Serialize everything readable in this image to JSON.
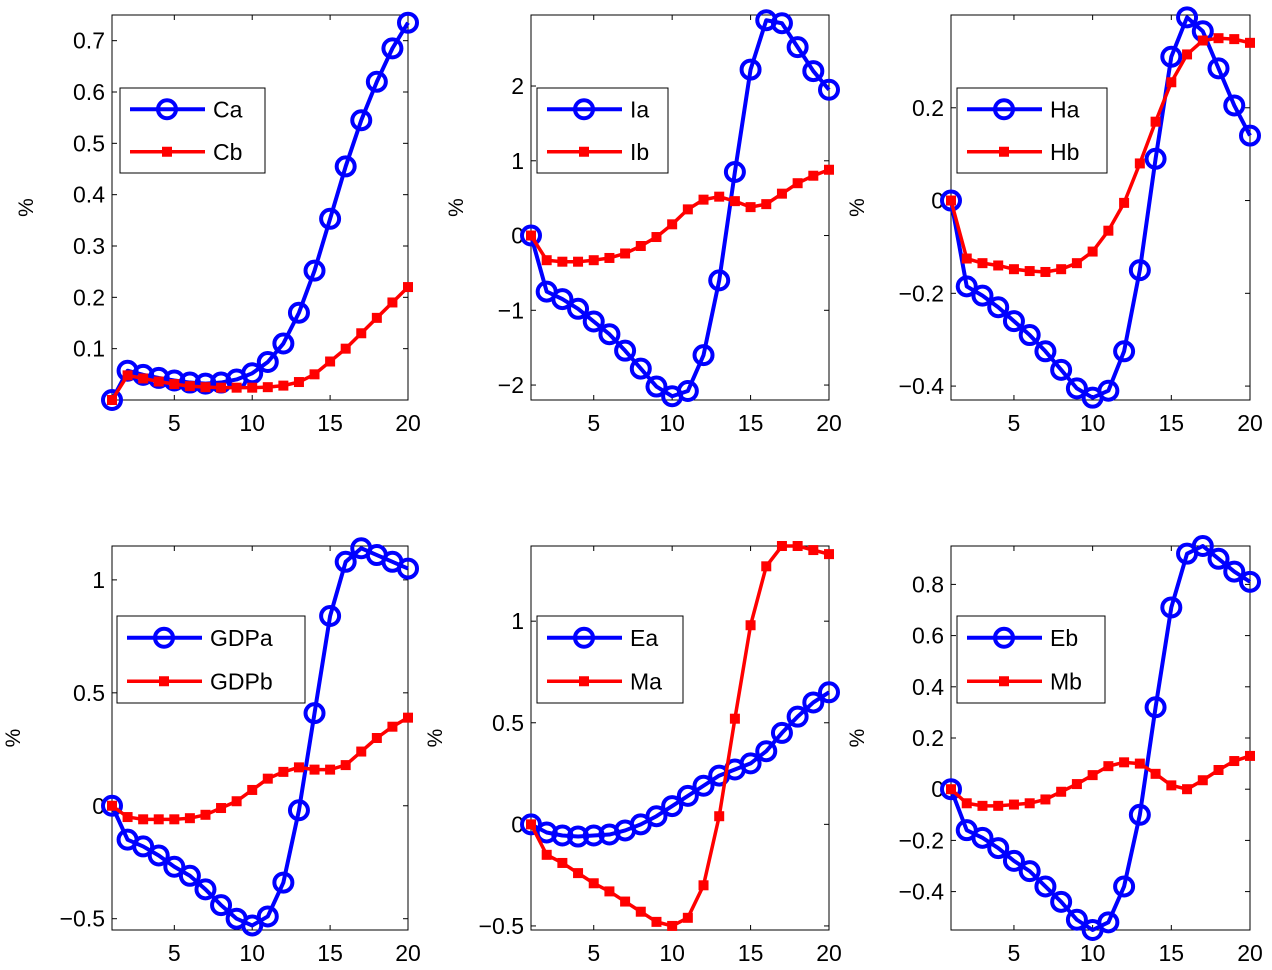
{
  "colors": {
    "a": "#0000ff",
    "b": "#ff0000",
    "axes": "#000000",
    "background": "#ffffff"
  },
  "chart_data": [
    {
      "type": "line",
      "ylabel": "%",
      "xlim": [
        1,
        20
      ],
      "ylim": [
        0.0,
        0.75
      ],
      "xticks": [
        5,
        10,
        15,
        20
      ],
      "xtick_labels": [
        "5",
        "10",
        "15",
        "20"
      ],
      "yticks": [
        0.1,
        0.2,
        0.3,
        0.4,
        0.5,
        0.6,
        0.7
      ],
      "ytick_labels": [
        "0.1",
        "0.2",
        "0.3",
        "0.4",
        "0.5",
        "0.6",
        "0.7"
      ],
      "legend": "top-left",
      "grid": false,
      "x": [
        1,
        2,
        3,
        4,
        5,
        6,
        7,
        8,
        9,
        10,
        11,
        12,
        13,
        14,
        15,
        16,
        17,
        18,
        19,
        20
      ],
      "series": [
        {
          "name": "Ca",
          "marker": "circle",
          "values": [
            0.0,
            0.057,
            0.049,
            0.043,
            0.038,
            0.034,
            0.032,
            0.034,
            0.04,
            0.052,
            0.074,
            0.11,
            0.17,
            0.252,
            0.353,
            0.455,
            0.545,
            0.62,
            0.685,
            0.735
          ]
        },
        {
          "name": "Cb",
          "marker": "square",
          "values": [
            0.0,
            0.048,
            0.042,
            0.036,
            0.031,
            0.027,
            0.025,
            0.024,
            0.024,
            0.024,
            0.025,
            0.028,
            0.035,
            0.05,
            0.075,
            0.1,
            0.13,
            0.16,
            0.19,
            0.22
          ]
        }
      ]
    },
    {
      "type": "line",
      "ylabel": "%",
      "xlim": [
        1,
        20
      ],
      "ylim": [
        -2.2,
        2.95
      ],
      "xticks": [
        5,
        10,
        15,
        20
      ],
      "xtick_labels": [
        "5",
        "10",
        "15",
        "20"
      ],
      "yticks": [
        -2,
        -1,
        0,
        1,
        2
      ],
      "ytick_labels": [
        "−2",
        "−1",
        "0",
        "1",
        "2"
      ],
      "legend": "top-left",
      "grid": false,
      "x": [
        1,
        2,
        3,
        4,
        5,
        6,
        7,
        8,
        9,
        10,
        11,
        12,
        13,
        14,
        15,
        16,
        17,
        18,
        19,
        20
      ],
      "series": [
        {
          "name": "Ia",
          "marker": "circle",
          "values": [
            0.0,
            -0.75,
            -0.85,
            -0.98,
            -1.15,
            -1.32,
            -1.54,
            -1.78,
            -2.02,
            -2.15,
            -2.08,
            -1.6,
            -0.6,
            0.85,
            2.22,
            2.88,
            2.84,
            2.52,
            2.2,
            1.95
          ]
        },
        {
          "name": "Ib",
          "marker": "square",
          "values": [
            0.0,
            -0.33,
            -0.35,
            -0.35,
            -0.33,
            -0.3,
            -0.24,
            -0.14,
            -0.02,
            0.15,
            0.35,
            0.48,
            0.52,
            0.46,
            0.38,
            0.42,
            0.56,
            0.7,
            0.8,
            0.88
          ]
        }
      ]
    },
    {
      "type": "line",
      "ylabel": "%",
      "xlim": [
        1,
        20
      ],
      "ylim": [
        -0.43,
        0.4
      ],
      "xticks": [
        5,
        10,
        15,
        20
      ],
      "xtick_labels": [
        "5",
        "10",
        "15",
        "20"
      ],
      "yticks": [
        -0.4,
        -0.2,
        0,
        0.2
      ],
      "ytick_labels": [
        "−0.4",
        "−0.2",
        "0",
        "0.2"
      ],
      "legend": "top-left",
      "grid": false,
      "x": [
        1,
        2,
        3,
        4,
        5,
        6,
        7,
        8,
        9,
        10,
        11,
        12,
        13,
        14,
        15,
        16,
        17,
        18,
        19,
        20
      ],
      "series": [
        {
          "name": "Ha",
          "marker": "circle",
          "values": [
            0.0,
            -0.185,
            -0.205,
            -0.23,
            -0.26,
            -0.29,
            -0.325,
            -0.365,
            -0.405,
            -0.425,
            -0.41,
            -0.325,
            -0.15,
            0.09,
            0.31,
            0.395,
            0.365,
            0.285,
            0.205,
            0.14
          ]
        },
        {
          "name": "Hb",
          "marker": "square",
          "values": [
            0.0,
            -0.125,
            -0.135,
            -0.14,
            -0.148,
            -0.152,
            -0.154,
            -0.148,
            -0.135,
            -0.11,
            -0.065,
            -0.005,
            0.08,
            0.17,
            0.255,
            0.315,
            0.345,
            0.35,
            0.348,
            0.34
          ]
        }
      ]
    },
    {
      "type": "line",
      "ylabel": "%",
      "xlim": [
        1,
        20
      ],
      "ylim": [
        -0.55,
        1.15
      ],
      "xticks": [
        5,
        10,
        15,
        20
      ],
      "xtick_labels": [
        "5",
        "10",
        "15",
        "20"
      ],
      "yticks": [
        -0.5,
        0,
        0.5,
        1
      ],
      "ytick_labels": [
        "−0.5",
        "0",
        "0.5",
        "1"
      ],
      "legend": "middle-left",
      "grid": false,
      "x": [
        1,
        2,
        3,
        4,
        5,
        6,
        7,
        8,
        9,
        10,
        11,
        12,
        13,
        14,
        15,
        16,
        17,
        18,
        19,
        20
      ],
      "series": [
        {
          "name": "GDPa",
          "marker": "circle",
          "values": [
            0.0,
            -0.15,
            -0.18,
            -0.22,
            -0.27,
            -0.31,
            -0.37,
            -0.44,
            -0.5,
            -0.53,
            -0.49,
            -0.34,
            -0.02,
            0.41,
            0.84,
            1.08,
            1.14,
            1.11,
            1.08,
            1.05
          ]
        },
        {
          "name": "GDPb",
          "marker": "square",
          "values": [
            0.0,
            -0.05,
            -0.06,
            -0.06,
            -0.06,
            -0.055,
            -0.04,
            -0.01,
            0.02,
            0.07,
            0.12,
            0.15,
            0.17,
            0.16,
            0.16,
            0.18,
            0.24,
            0.3,
            0.35,
            0.39
          ]
        }
      ]
    },
    {
      "type": "line",
      "ylabel": "%",
      "xlim": [
        1,
        20
      ],
      "ylim": [
        -0.52,
        1.37
      ],
      "xticks": [
        5,
        10,
        15,
        20
      ],
      "xtick_labels": [
        "5",
        "10",
        "15",
        "20"
      ],
      "yticks": [
        -0.5,
        0,
        0.5,
        1
      ],
      "ytick_labels": [
        "−0.5",
        "0",
        "0.5",
        "1"
      ],
      "legend": "middle-left",
      "grid": false,
      "x": [
        1,
        2,
        3,
        4,
        5,
        6,
        7,
        8,
        9,
        10,
        11,
        12,
        13,
        14,
        15,
        16,
        17,
        18,
        19,
        20
      ],
      "series": [
        {
          "name": "Ea",
          "marker": "circle",
          "values": [
            0.0,
            -0.04,
            -0.055,
            -0.06,
            -0.055,
            -0.05,
            -0.03,
            0.0,
            0.04,
            0.09,
            0.14,
            0.19,
            0.24,
            0.27,
            0.3,
            0.36,
            0.45,
            0.53,
            0.6,
            0.65
          ]
        },
        {
          "name": "Ma",
          "marker": "square",
          "values": [
            0.0,
            -0.15,
            -0.19,
            -0.24,
            -0.29,
            -0.33,
            -0.38,
            -0.43,
            -0.48,
            -0.5,
            -0.46,
            -0.3,
            0.04,
            0.52,
            0.98,
            1.27,
            1.37,
            1.37,
            1.35,
            1.33
          ]
        }
      ]
    },
    {
      "type": "line",
      "ylabel": "%",
      "xlim": [
        1,
        20
      ],
      "ylim": [
        -0.55,
        0.95
      ],
      "xticks": [
        5,
        10,
        15,
        20
      ],
      "xtick_labels": [
        "5",
        "10",
        "15",
        "20"
      ],
      "yticks": [
        -0.4,
        -0.2,
        0,
        0.2,
        0.4,
        0.6,
        0.8
      ],
      "ytick_labels": [
        "−0.4",
        "−0.2",
        "0",
        "0.2",
        "0.4",
        "0.6",
        "0.8"
      ],
      "legend": "top-left",
      "grid": false,
      "x": [
        1,
        2,
        3,
        4,
        5,
        6,
        7,
        8,
        9,
        10,
        11,
        12,
        13,
        14,
        15,
        16,
        17,
        18,
        19,
        20
      ],
      "series": [
        {
          "name": "Eb",
          "marker": "circle",
          "values": [
            0.0,
            -0.16,
            -0.19,
            -0.23,
            -0.28,
            -0.32,
            -0.38,
            -0.44,
            -0.51,
            -0.55,
            -0.52,
            -0.38,
            -0.1,
            0.32,
            0.71,
            0.92,
            0.95,
            0.9,
            0.85,
            0.81
          ]
        },
        {
          "name": "Mb",
          "marker": "square",
          "values": [
            0.0,
            -0.055,
            -0.065,
            -0.065,
            -0.06,
            -0.055,
            -0.04,
            -0.01,
            0.02,
            0.055,
            0.09,
            0.105,
            0.1,
            0.06,
            0.015,
            0.0,
            0.035,
            0.075,
            0.11,
            0.13
          ]
        }
      ]
    }
  ]
}
